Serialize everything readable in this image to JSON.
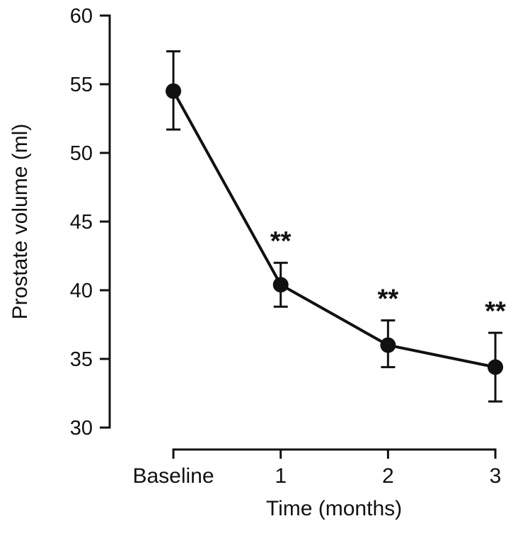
{
  "chart_data": {
    "type": "line",
    "title": "",
    "categories": [
      "Baseline",
      "1",
      "2",
      "3"
    ],
    "values": [
      54.5,
      40.4,
      36.0,
      34.4
    ],
    "error_upper": [
      57.4,
      42.0,
      37.8,
      36.9
    ],
    "error_lower": [
      51.7,
      38.8,
      34.4,
      31.9
    ],
    "significance": [
      "",
      "**",
      "**",
      "**"
    ],
    "xlabel": "Time (months)",
    "ylabel": "Prostate volume (ml)",
    "ylim": [
      30,
      60
    ],
    "yticks": [
      30,
      35,
      40,
      45,
      50,
      55,
      60
    ],
    "grid": false,
    "legend": null,
    "marker": "filled-circle",
    "colors": {
      "line": "#111111",
      "marker": "#111111",
      "background": "#ffffff"
    }
  }
}
